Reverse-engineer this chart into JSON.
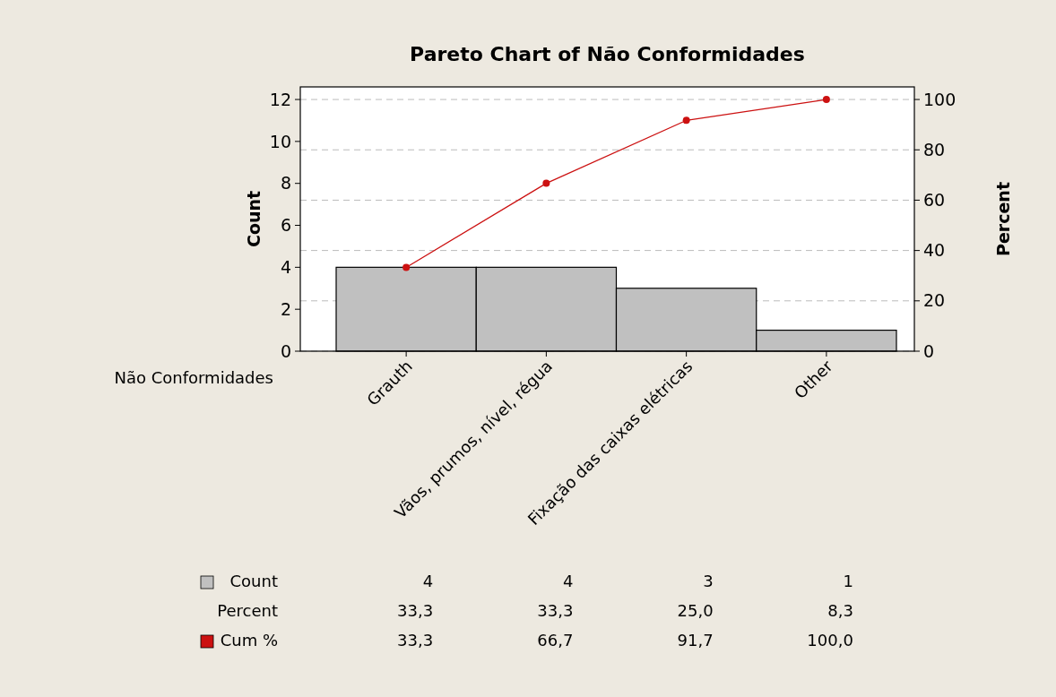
{
  "chart_data": {
    "type": "bar",
    "title": "Pareto Chart of Não Conformidades",
    "xlabel": "Não Conformidades",
    "ylabel": "Count",
    "y2label": "Percent",
    "categories": [
      "Grauth",
      "Vãos, prumos, nível, régua",
      "Fixação das caixas elétricas",
      "Other"
    ],
    "series": [
      {
        "name": "Count",
        "color": "#c0c0c0",
        "values": [
          4,
          4,
          3,
          1
        ],
        "value_labels": [
          "4",
          "4",
          "3",
          "1"
        ]
      },
      {
        "name": "Cum %",
        "type": "line",
        "axis": "y2",
        "color": "#cc1111",
        "marker": "circle",
        "values": [
          33.3,
          66.7,
          91.7,
          100.0
        ],
        "value_labels": [
          "33,3",
          "66,7",
          "91,7",
          "100,0"
        ]
      }
    ],
    "ylim": [
      0,
      12.6
    ],
    "yticks": [
      0,
      2,
      4,
      6,
      8,
      10,
      12
    ],
    "y2lim": [
      0,
      105
    ],
    "y2ticks": [
      0,
      20,
      40,
      60,
      80,
      100
    ],
    "grid": "y2",
    "legend": "bottom left",
    "annotations": [
      "Percent",
      "33,3",
      "33,3",
      "25,0",
      "8,3"
    ]
  }
}
